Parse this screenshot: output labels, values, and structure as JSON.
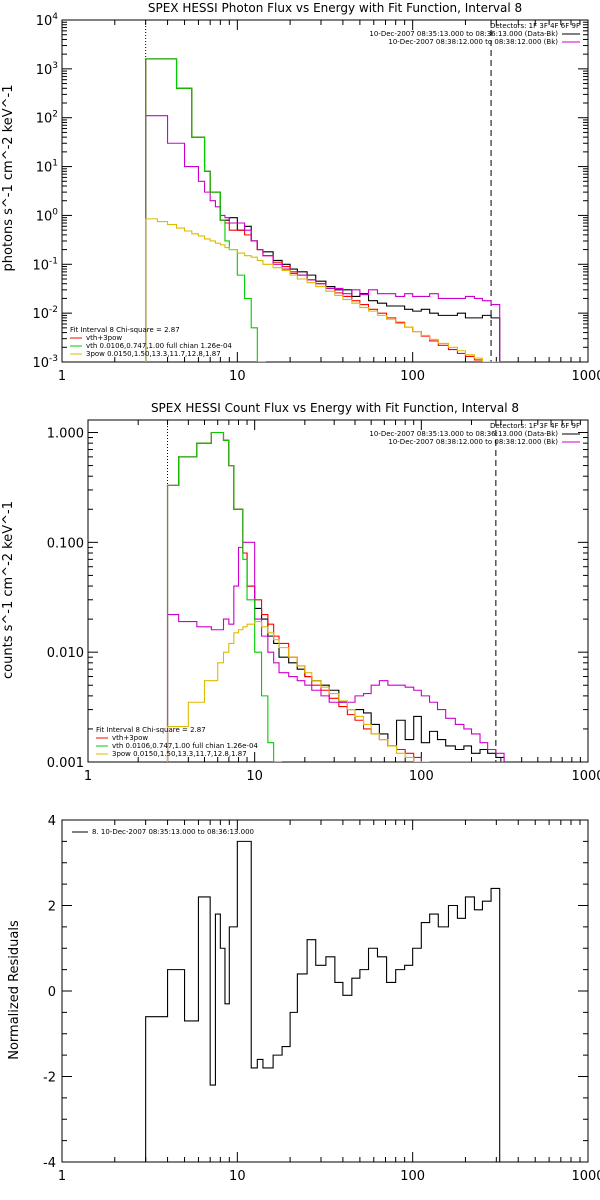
{
  "chart_data": [
    {
      "type": "line",
      "title": "SPEX HESSI Photon Flux vs Energy with Fit Function, Interval 8",
      "ylabel": "photons s^-1 cm^-2 keV^-1",
      "xscale": "log",
      "yscale": "log",
      "xlim": [
        1,
        1000
      ],
      "ylim": [
        0.001,
        10000
      ],
      "x_ticks": [
        "1",
        "10",
        "100",
        "1000"
      ],
      "y_ticks": [
        "10^-3",
        "10^-2",
        "10^-1",
        "10^0",
        "10^1",
        "10^2",
        "10^3",
        "10^4"
      ],
      "vlines": [
        {
          "x": 3,
          "style": "dotted"
        },
        {
          "x": 280,
          "style": "dashed"
        }
      ],
      "legend_top_right": [
        {
          "text": "Detectors: 1F 3F 4F 6F 9F",
          "color": "#000000"
        },
        {
          "text": "10-Dec-2007 08:35:13.000 to 08:36:13.000 (Data-Bk)",
          "color": "#000000"
        },
        {
          "text": "10-Dec-2007 08:38:12.000 to 08:38:12.000 (Bk)",
          "color": "#cc00cc"
        }
      ],
      "legend_bottom_left": [
        {
          "text": "Fit Interval 8    Chi-square = 2.87",
          "color": "#000000"
        },
        {
          "text": "vth+3pow",
          "color": "#ff0000"
        },
        {
          "text": "vth 0.0106,0.747,1.00  full chian 1.26e-04",
          "color": "#00cc00"
        },
        {
          "text": "3pow 0.0150,1.50,13.3,11.7,12.8,1.87",
          "color": "#ddbb00"
        }
      ],
      "series": [
        {
          "name": "Data-Bk",
          "color": "#000000",
          "x": [
            3,
            3.5,
            4,
            4.5,
            5,
            5.5,
            6,
            6.5,
            7,
            7.5,
            8,
            8.5,
            9,
            10,
            11,
            12,
            13,
            14,
            16,
            18,
            20,
            22,
            25,
            28,
            32,
            36,
            40,
            45,
            50,
            56,
            63,
            71,
            80,
            90,
            100,
            112,
            125,
            140,
            160,
            180,
            200,
            225,
            250,
            280
          ],
          "y": [
            1600,
            1600,
            1600,
            400,
            400,
            40,
            40,
            8,
            3,
            3,
            0.8,
            0.8,
            0.9,
            0.5,
            0.6,
            0.3,
            0.2,
            0.18,
            0.12,
            0.1,
            0.08,
            0.07,
            0.06,
            0.045,
            0.035,
            0.03,
            0.03,
            0.022,
            0.025,
            0.018,
            0.016,
            0.014,
            0.014,
            0.012,
            0.011,
            0.012,
            0.01,
            0.009,
            0.009,
            0.01,
            0.008,
            0.008,
            0.009,
            0.008
          ]
        },
        {
          "name": "vth+3pow",
          "color": "#ff0000",
          "x": [
            3,
            3.5,
            4,
            4.5,
            5,
            5.5,
            6,
            6.5,
            7,
            7.5,
            8,
            8.5,
            9,
            10,
            11,
            12,
            13,
            14,
            16,
            18,
            20,
            22,
            25,
            28,
            32,
            36,
            40,
            45,
            50,
            56,
            63,
            71,
            80,
            90,
            100,
            112,
            125,
            140,
            160,
            180,
            200,
            225,
            250,
            280
          ],
          "y": [
            1600,
            1600,
            1600,
            400,
            400,
            40,
            40,
            8,
            3,
            3,
            0.8,
            0.7,
            0.5,
            0.5,
            0.4,
            0.3,
            0.2,
            0.15,
            0.11,
            0.09,
            0.07,
            0.06,
            0.048,
            0.04,
            0.032,
            0.026,
            0.022,
            0.018,
            0.015,
            0.012,
            0.01,
            0.008,
            0.0065,
            0.0052,
            0.0042,
            0.0034,
            0.0027,
            0.0022,
            0.0018,
            0.0015,
            0.0013,
            0.0011,
            0.00095,
            0.001
          ]
        },
        {
          "name": "Bk",
          "color": "#cc00cc",
          "x": [
            3,
            3.5,
            4,
            4.5,
            5,
            5.5,
            6,
            6.5,
            7,
            7.5,
            8,
            8.5,
            9,
            10,
            11,
            12,
            13,
            14,
            16,
            18,
            20,
            22,
            25,
            28,
            32,
            36,
            40,
            45,
            50,
            56,
            63,
            71,
            80,
            90,
            100,
            112,
            125,
            140,
            160,
            180,
            200,
            225,
            250,
            280
          ],
          "y": [
            110,
            110,
            30,
            30,
            10,
            10,
            5,
            3,
            2,
            1.5,
            1.0,
            0.9,
            0.7,
            0.7,
            0.5,
            0.3,
            0.2,
            0.15,
            0.1,
            0.08,
            0.065,
            0.06,
            0.048,
            0.04,
            0.032,
            0.032,
            0.025,
            0.03,
            0.024,
            0.03,
            0.025,
            0.025,
            0.022,
            0.025,
            0.022,
            0.022,
            0.025,
            0.02,
            0.02,
            0.02,
            0.022,
            0.02,
            0.018,
            0.015
          ]
        },
        {
          "name": "vth",
          "color": "#00cc00",
          "x": [
            3,
            3.5,
            4,
            4.5,
            5,
            5.5,
            6,
            6.5,
            7,
            7.5,
            8,
            8.5,
            9,
            10,
            11,
            12,
            13
          ],
          "y": [
            1600,
            1600,
            1600,
            400,
            400,
            40,
            40,
            8,
            3,
            3,
            0.8,
            0.3,
            0.2,
            0.06,
            0.02,
            0.005,
            0.001
          ]
        },
        {
          "name": "3pow",
          "color": "#ddbb00",
          "x": [
            3,
            3.5,
            4,
            4.5,
            5,
            5.5,
            6,
            6.5,
            7,
            7.5,
            8,
            8.5,
            9,
            10,
            11,
            12,
            13,
            14,
            16,
            18,
            20,
            22,
            25,
            28,
            32,
            36,
            40,
            45,
            50,
            56,
            63,
            71,
            80,
            90,
            100,
            112,
            125,
            140,
            160,
            180,
            200,
            225,
            250,
            280
          ],
          "y": [
            0.85,
            0.75,
            0.65,
            0.55,
            0.48,
            0.42,
            0.38,
            0.33,
            0.3,
            0.27,
            0.25,
            0.22,
            0.2,
            0.17,
            0.15,
            0.14,
            0.12,
            0.1,
            0.085,
            0.075,
            0.06,
            0.05,
            0.042,
            0.035,
            0.028,
            0.023,
            0.019,
            0.016,
            0.013,
            0.011,
            0.009,
            0.0075,
            0.0062,
            0.0052,
            0.0042,
            0.0035,
            0.0029,
            0.0024,
            0.002,
            0.0017,
            0.0014,
            0.0012,
            0.001,
            0.001
          ]
        }
      ]
    },
    {
      "type": "line",
      "title": "SPEX HESSI Count Flux vs Energy with Fit Function, Interval 8",
      "ylabel": "counts s^-1 cm^-2 keV^-1",
      "xscale": "log",
      "yscale": "log",
      "xlim": [
        1,
        1000
      ],
      "ylim": [
        0.001,
        1.3
      ],
      "x_ticks": [
        "1",
        "10",
        "100",
        "1000"
      ],
      "y_ticks": [
        "0.001",
        "0.010",
        "0.100",
        "1.000"
      ],
      "vlines": [
        {
          "x": 3,
          "style": "dotted"
        },
        {
          "x": 280,
          "style": "dashed"
        }
      ],
      "legend_top_right": [
        {
          "text": "Detectors: 1F 3F 4F 6F 9F",
          "color": "#000000"
        },
        {
          "text": "10-Dec-2007 08:35:13.000 to 08:36:13.000 (Data-Bk)",
          "color": "#000000"
        },
        {
          "text": "10-Dec-2007 08:38:12.000 to 08:38:12.000 (Bk)",
          "color": "#cc00cc"
        }
      ],
      "legend_bottom_left": [
        {
          "text": "Fit Interval 8    Chi-square = 2.87",
          "color": "#000000"
        },
        {
          "text": "vth+3pow",
          "color": "#ff0000"
        },
        {
          "text": "vth 0.0106,0.747,1.00  full chian 1.26e-04",
          "color": "#00cc00"
        },
        {
          "text": "3pow 0.0150,1.50,13.3,11.7,12.8,1.87",
          "color": "#ddbb00"
        }
      ],
      "series": [
        {
          "name": "Data-Bk",
          "color": "#000000",
          "x": [
            3,
            3.5,
            4,
            4.5,
            5,
            5.5,
            6,
            6.5,
            7,
            7.5,
            8,
            8.5,
            9,
            10,
            11,
            12,
            13,
            14,
            16,
            18,
            20,
            22,
            25,
            28,
            32,
            36,
            40,
            45,
            50,
            56,
            63,
            71,
            80,
            90,
            100,
            112,
            125,
            140,
            160,
            180,
            200,
            225,
            250,
            280
          ],
          "y": [
            0.33,
            0.6,
            0.6,
            0.8,
            0.8,
            1.0,
            1.0,
            0.85,
            0.5,
            0.2,
            0.2,
            0.08,
            0.04,
            0.025,
            0.02,
            0.014,
            0.012,
            0.009,
            0.008,
            0.007,
            0.006,
            0.0055,
            0.005,
            0.0045,
            0.0035,
            0.003,
            0.003,
            0.0028,
            0.0022,
            0.0018,
            0.0014,
            0.0024,
            0.0016,
            0.0026,
            0.0015,
            0.0019,
            0.0016,
            0.0014,
            0.0013,
            0.0014,
            0.0012,
            0.0013,
            0.0012,
            0.0011
          ]
        },
        {
          "name": "vth+3pow",
          "color": "#ff0000",
          "x": [
            3,
            3.5,
            4,
            4.5,
            5,
            5.5,
            6,
            6.5,
            7,
            7.5,
            8,
            8.5,
            9,
            10,
            11,
            12,
            13,
            14,
            16,
            18,
            20,
            22,
            25,
            28,
            32,
            36,
            40,
            45,
            50,
            56,
            63,
            71,
            80,
            90,
            100,
            112,
            125,
            140,
            160,
            180,
            200,
            225,
            250,
            280
          ],
          "y": [
            0.33,
            0.6,
            0.6,
            0.8,
            0.8,
            1.0,
            1.0,
            0.85,
            0.5,
            0.2,
            0.2,
            0.08,
            0.04,
            0.03,
            0.022,
            0.018,
            0.014,
            0.012,
            0.009,
            0.0075,
            0.006,
            0.005,
            0.0045,
            0.0038,
            0.0032,
            0.0027,
            0.0024,
            0.002,
            0.0018,
            0.0016,
            0.0014,
            0.0013,
            0.0012,
            0.0011,
            0.001,
            0.001,
            0.001,
            0.001,
            0.001,
            0.001,
            0.001,
            0.001,
            0.001,
            0.001
          ]
        },
        {
          "name": "Bk",
          "color": "#cc00cc",
          "x": [
            3,
            3.5,
            4,
            4.5,
            5,
            5.5,
            6,
            6.5,
            7,
            7.5,
            8,
            8.5,
            9,
            10,
            11,
            12,
            13,
            14,
            16,
            18,
            20,
            22,
            25,
            28,
            32,
            36,
            40,
            45,
            50,
            56,
            63,
            71,
            80,
            90,
            100,
            112,
            125,
            140,
            160,
            180,
            200,
            225,
            250,
            280
          ],
          "y": [
            0.022,
            0.019,
            0.019,
            0.017,
            0.017,
            0.016,
            0.016,
            0.02,
            0.018,
            0.04,
            0.09,
            0.1,
            0.1,
            0.02,
            0.014,
            0.01,
            0.008,
            0.0065,
            0.006,
            0.0055,
            0.005,
            0.0045,
            0.004,
            0.0035,
            0.0035,
            0.0035,
            0.004,
            0.0042,
            0.005,
            0.0055,
            0.005,
            0.005,
            0.0048,
            0.0045,
            0.004,
            0.0035,
            0.003,
            0.0025,
            0.0022,
            0.002,
            0.0018,
            0.0015,
            0.0013,
            0.0012
          ]
        },
        {
          "name": "vth",
          "color": "#00cc00",
          "x": [
            3,
            3.5,
            4,
            4.5,
            5,
            5.5,
            6,
            6.5,
            7,
            7.5,
            8,
            8.5,
            9,
            10,
            11,
            12,
            13
          ],
          "y": [
            0.33,
            0.6,
            0.6,
            0.8,
            0.8,
            1.0,
            1.0,
            0.85,
            0.5,
            0.2,
            0.2,
            0.07,
            0.03,
            0.01,
            0.004,
            0.0015,
            0.001
          ]
        },
        {
          "name": "3pow",
          "color": "#ddbb00",
          "x": [
            3,
            3.5,
            4,
            4.5,
            5,
            5.5,
            6,
            6.5,
            7,
            7.5,
            8,
            8.5,
            9,
            10,
            11,
            12,
            13,
            14,
            16,
            18,
            20,
            22,
            25,
            28,
            32,
            36,
            40,
            45,
            50,
            56,
            63,
            71,
            80,
            90,
            100
          ],
          "y": [
            0.0021,
            0.0021,
            0.0035,
            0.0035,
            0.0055,
            0.0055,
            0.008,
            0.01,
            0.012,
            0.015,
            0.016,
            0.017,
            0.018,
            0.019,
            0.017,
            0.015,
            0.013,
            0.011,
            0.009,
            0.0075,
            0.0065,
            0.0055,
            0.0048,
            0.0042,
            0.0036,
            0.003,
            0.0026,
            0.0022,
            0.0018,
            0.0016,
            0.0014,
            0.0012,
            0.0011,
            0.001,
            0.001
          ]
        }
      ]
    },
    {
      "type": "line",
      "title": "",
      "ylabel": "Normalized Residuals",
      "xscale": "log",
      "yscale": "linear",
      "xlim": [
        1,
        1000
      ],
      "ylim": [
        -4,
        4
      ],
      "x_ticks": [
        "1",
        "10",
        "100",
        "1000"
      ],
      "y_ticks": [
        "-4",
        "-2",
        "0",
        "2",
        "4"
      ],
      "legend_top_left": [
        {
          "text": "8. 10-Dec-2007 08:35:13.000 to 08:36:13.000",
          "color": "#000000"
        }
      ],
      "series": [
        {
          "name": "",
          "color": "#000000",
          "x": [
            3,
            3.5,
            4,
            4.5,
            5,
            5.5,
            6,
            6.5,
            7,
            7.5,
            8,
            8.5,
            9,
            10,
            11,
            12,
            13,
            14,
            16,
            18,
            20,
            22,
            25,
            28,
            32,
            36,
            40,
            45,
            50,
            56,
            63,
            71,
            80,
            90,
            100,
            112,
            125,
            140,
            160,
            180,
            200,
            225,
            250,
            280
          ],
          "y": [
            -0.6,
            -0.6,
            0.5,
            0.5,
            -0.7,
            -0.7,
            2.2,
            2.2,
            -2.2,
            1.8,
            1.0,
            -0.3,
            1.5,
            3.5,
            3.5,
            -1.8,
            -1.6,
            -1.8,
            -1.5,
            -1.3,
            -0.5,
            0.4,
            1.2,
            0.6,
            0.8,
            0.2,
            -0.1,
            0.3,
            0.5,
            1.0,
            0.8,
            0.2,
            0.5,
            0.6,
            1.0,
            1.6,
            1.8,
            1.5,
            2.0,
            1.7,
            2.2,
            1.9,
            2.1,
            2.4
          ]
        }
      ]
    }
  ]
}
